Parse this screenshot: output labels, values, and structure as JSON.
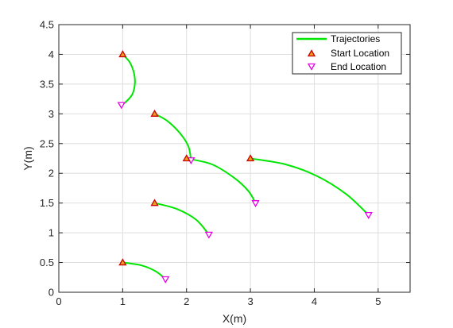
{
  "chart_data": {
    "type": "line",
    "xlabel": "X(m)",
    "ylabel": "Y(m)",
    "xlim": [
      0,
      5.5
    ],
    "ylim": [
      0,
      4.5
    ],
    "xticks": [
      0,
      1,
      2,
      3,
      4,
      5
    ],
    "yticks": [
      0,
      0.5,
      1,
      1.5,
      2,
      2.5,
      3,
      3.5,
      4,
      4.5
    ],
    "xtick_labels": [
      "0",
      "1",
      "2",
      "3",
      "4",
      "5"
    ],
    "ytick_labels": [
      "0",
      "0.5",
      "1",
      "1.5",
      "2",
      "2.5",
      "3",
      "3.5",
      "4",
      "4.5"
    ],
    "grid": true,
    "legend_position": "top-right",
    "colors": {
      "trajectory": "#00e600",
      "start_marker": "#cc0000",
      "start_fill": "#e8a020",
      "end_marker": "#e600e6",
      "grid": "#dedede",
      "axis": "#262626"
    },
    "legend": [
      {
        "label": "Trajectories",
        "kind": "line"
      },
      {
        "label": "Start Location",
        "kind": "start"
      },
      {
        "label": "End Location",
        "kind": "end"
      }
    ],
    "series": [
      {
        "name": "Trajectories",
        "trajectories": [
          {
            "start": [
              1.0,
              4.0
            ],
            "end": [
              0.98,
              3.15
            ],
            "points": [
              [
                1.0,
                4.0
              ],
              [
                1.12,
                3.85
              ],
              [
                1.19,
                3.6
              ],
              [
                1.16,
                3.35
              ],
              [
                1.05,
                3.2
              ],
              [
                0.98,
                3.15
              ]
            ]
          },
          {
            "start": [
              1.5,
              3.0
            ],
            "end": [
              2.07,
              2.22
            ],
            "points": [
              [
                1.5,
                3.0
              ],
              [
                1.7,
                2.88
              ],
              [
                1.9,
                2.67
              ],
              [
                2.03,
                2.45
              ],
              [
                2.07,
                2.22
              ]
            ]
          },
          {
            "start": [
              2.0,
              2.25
            ],
            "end": [
              3.08,
              1.5
            ],
            "points": [
              [
                2.0,
                2.25
              ],
              [
                2.4,
                2.15
              ],
              [
                2.75,
                1.92
              ],
              [
                2.97,
                1.7
              ],
              [
                3.08,
                1.5
              ]
            ]
          },
          {
            "start": [
              3.0,
              2.25
            ],
            "end": [
              4.85,
              1.3
            ],
            "points": [
              [
                3.0,
                2.25
              ],
              [
                3.55,
                2.15
              ],
              [
                4.05,
                1.95
              ],
              [
                4.5,
                1.65
              ],
              [
                4.85,
                1.3
              ]
            ]
          },
          {
            "start": [
              1.5,
              1.5
            ],
            "end": [
              2.35,
              0.97
            ],
            "points": [
              [
                1.5,
                1.5
              ],
              [
                1.85,
                1.4
              ],
              [
                2.15,
                1.22
              ],
              [
                2.35,
                0.97
              ]
            ]
          },
          {
            "start": [
              1.0,
              0.5
            ],
            "end": [
              1.67,
              0.22
            ],
            "points": [
              [
                1.0,
                0.5
              ],
              [
                1.3,
                0.45
              ],
              [
                1.52,
                0.35
              ],
              [
                1.67,
                0.22
              ]
            ]
          }
        ]
      }
    ]
  }
}
